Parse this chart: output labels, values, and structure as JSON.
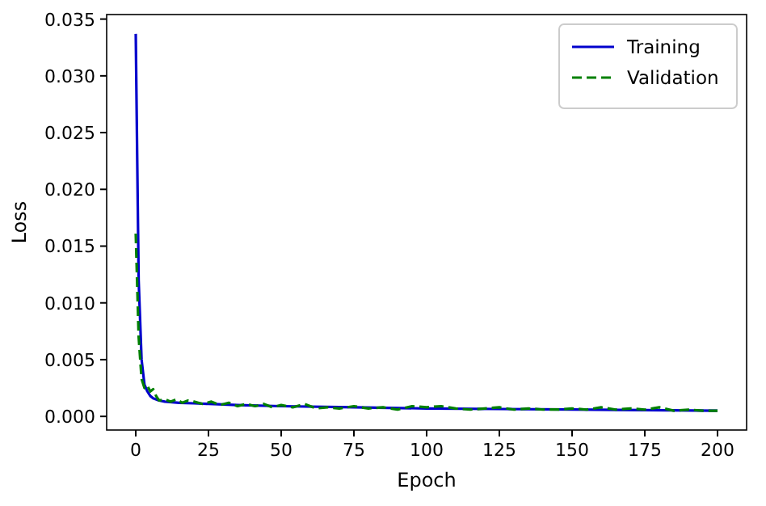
{
  "chart_data": {
    "type": "line",
    "xlabel": "Epoch",
    "ylabel": "Loss",
    "xlim": [
      -10,
      210
    ],
    "ylim": [
      -0.0012,
      0.0354
    ],
    "xticks": [
      0,
      25,
      50,
      75,
      100,
      125,
      150,
      175,
      200
    ],
    "yticks": [
      {
        "value": 0,
        "label": "0.000"
      },
      {
        "value": 0.005,
        "label": "0.005"
      },
      {
        "value": 0.01,
        "label": "0.010"
      },
      {
        "value": 0.015,
        "label": "0.015"
      },
      {
        "value": 0.02,
        "label": "0.020"
      },
      {
        "value": 0.025,
        "label": "0.025"
      },
      {
        "value": 0.03,
        "label": "0.030"
      },
      {
        "value": 0.035,
        "label": "0.035"
      }
    ],
    "grid": false,
    "legend": "top right",
    "series": [
      {
        "name": "Training",
        "color": "#0000cc",
        "line_style": "solid",
        "x": [
          0,
          1,
          2,
          3,
          4,
          5,
          6,
          8,
          10,
          15,
          20,
          25,
          35,
          50,
          75,
          100,
          125,
          150,
          175,
          200
        ],
        "values": [
          0.0337,
          0.012,
          0.005,
          0.0028,
          0.0022,
          0.0018,
          0.0016,
          0.0014,
          0.0013,
          0.0012,
          0.00115,
          0.0011,
          0.001,
          0.0009,
          0.0008,
          0.0007,
          0.00065,
          0.0006,
          0.00055,
          0.0005
        ]
      },
      {
        "name": "Validation",
        "color": "#008000",
        "line_style": "dashed",
        "x": [
          0,
          1,
          2,
          3,
          4,
          5,
          6,
          7,
          8,
          10,
          12,
          14,
          16,
          18,
          20,
          23,
          26,
          29,
          32,
          35,
          38,
          41,
          44,
          47,
          50,
          54,
          58,
          62,
          66,
          70,
          75,
          80,
          85,
          90,
          95,
          100,
          105,
          110,
          115,
          120,
          125,
          130,
          135,
          140,
          145,
          150,
          155,
          160,
          165,
          170,
          175,
          180,
          185,
          190,
          195,
          200
        ],
        "values": [
          0.0161,
          0.007,
          0.0033,
          0.0025,
          0.0027,
          0.0022,
          0.0024,
          0.0018,
          0.0014,
          0.0015,
          0.0013,
          0.0015,
          0.0012,
          0.0014,
          0.0013,
          0.0011,
          0.0013,
          0.001,
          0.0012,
          0.0009,
          0.0011,
          0.0009,
          0.0011,
          0.0008,
          0.001,
          0.0008,
          0.0011,
          0.0007,
          0.0008,
          0.0007,
          0.0009,
          0.0007,
          0.0008,
          0.0006,
          0.0009,
          0.0008,
          0.0009,
          0.0007,
          0.0006,
          0.0007,
          0.0008,
          0.0006,
          0.0007,
          0.0006,
          0.0006,
          0.0007,
          0.0006,
          0.0008,
          0.0006,
          0.0007,
          0.0006,
          0.0008,
          0.0005,
          0.0006,
          0.0005,
          0.0005
        ]
      }
    ]
  }
}
